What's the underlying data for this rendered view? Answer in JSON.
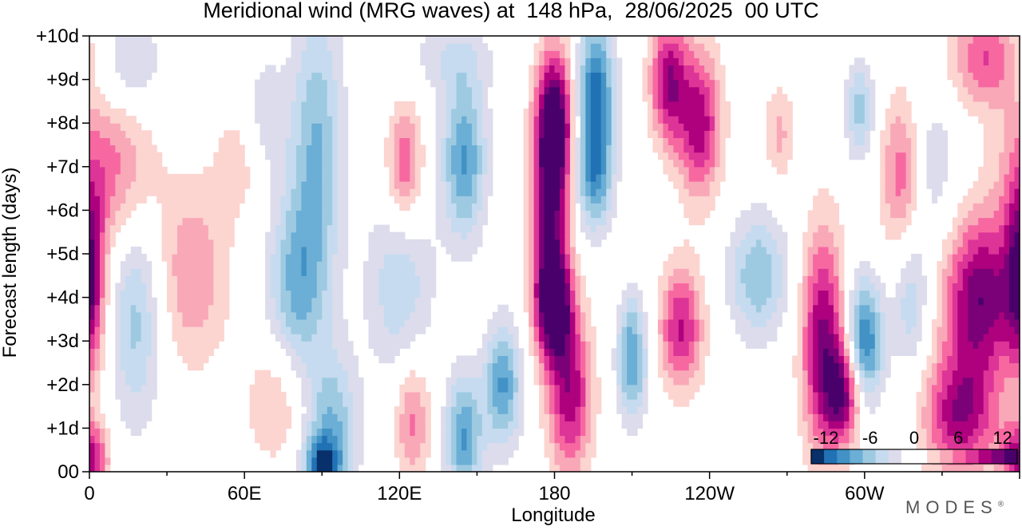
{
  "chart_data": {
    "type": "heatmap",
    "title": "Meridional wind (MRG waves) at  148 hPa,  28/06/2025  00 UTC",
    "xlabel": "Longitude",
    "ylabel": "Forecast length (days)",
    "x_ticks": [
      "0",
      "60E",
      "120E",
      "180",
      "120W",
      "60W"
    ],
    "y_ticks": [
      "00",
      "+1d",
      "+2d",
      "+3d",
      "+4d",
      "+5d",
      "+6d",
      "+7d",
      "+8d",
      "+9d",
      "+10d"
    ],
    "xlim": [
      0,
      360
    ],
    "ylim": [
      0,
      10
    ],
    "colorbar": {
      "labels": [
        "-12",
        "-6",
        "0",
        "6",
        "12"
      ],
      "range": [
        -14,
        14
      ],
      "placement": "bottom-right",
      "colors": [
        "#08306b",
        "#2171b5",
        "#4292c6",
        "#6baed6",
        "#9ecae1",
        "#c6dbef",
        "#dcdcec",
        "#ffffff",
        "#ffffff",
        "#fcd4d0",
        "#f9a8b8",
        "#f768a1",
        "#dd3497",
        "#ae017e",
        "#7a0177",
        "#49006a"
      ]
    },
    "grid": false,
    "features": [
      {
        "lon": 0,
        "day": 4.5,
        "amp": 10,
        "sx": 4,
        "sy": 1.5
      },
      {
        "lon": 0,
        "day": 0.3,
        "amp": 10,
        "sx": 5,
        "sy": 0.6
      },
      {
        "lon": 8,
        "day": 7.0,
        "amp": 6,
        "sx": 12,
        "sy": 1.3
      },
      {
        "lon": 18,
        "day": 3.5,
        "amp": -6,
        "sx": 7,
        "sy": 1.7
      },
      {
        "lon": 40,
        "day": 4.5,
        "amp": 5,
        "sx": 10,
        "sy": 1.5
      },
      {
        "lon": 60,
        "day": 7.2,
        "amp": 3,
        "sx": 8,
        "sy": 1.0
      },
      {
        "lon": 72,
        "day": 1.6,
        "amp": 4,
        "sx": 8,
        "sy": 1.0
      },
      {
        "lon": 68,
        "day": 8.0,
        "amp": -4,
        "sx": 6,
        "sy": 1.0
      },
      {
        "lon": 88,
        "day": 7.5,
        "amp": -7,
        "sx": 7,
        "sy": 2.3
      },
      {
        "lon": 80,
        "day": 4.3,
        "amp": -7,
        "sx": 8,
        "sy": 1.5
      },
      {
        "lon": 94,
        "day": 1.0,
        "amp": -7,
        "sx": 7,
        "sy": 1.2
      },
      {
        "lon": 90,
        "day": 0.1,
        "amp": -10,
        "sx": 5,
        "sy": 0.5
      },
      {
        "lon": 122,
        "day": 7.0,
        "amp": 7,
        "sx": 5,
        "sy": 1.0
      },
      {
        "lon": 125,
        "day": 1.2,
        "amp": 6,
        "sx": 5,
        "sy": 1.0
      },
      {
        "lon": 120,
        "day": 4.3,
        "amp": -5,
        "sx": 9,
        "sy": 1.5
      },
      {
        "lon": 145,
        "day": 7.2,
        "amp": -9,
        "sx": 6,
        "sy": 1.3
      },
      {
        "lon": 160,
        "day": 2.0,
        "amp": -9,
        "sx": 5,
        "sy": 1.0
      },
      {
        "lon": 145,
        "day": 0.8,
        "amp": -9,
        "sx": 5,
        "sy": 1.0
      },
      {
        "lon": 180,
        "day": 8.0,
        "amp": 14,
        "sx": 5,
        "sy": 1.2
      },
      {
        "lon": 178,
        "day": 5.5,
        "amp": 11,
        "sx": 5,
        "sy": 1.7
      },
      {
        "lon": 180,
        "day": 3.8,
        "amp": 11,
        "sx": 5,
        "sy": 0.8
      },
      {
        "lon": 186,
        "day": 1.8,
        "amp": 10,
        "sx": 6,
        "sy": 1.3
      },
      {
        "lon": 196,
        "day": 8.5,
        "amp": -12,
        "sx": 5,
        "sy": 1.3
      },
      {
        "lon": 195,
        "day": 6.6,
        "amp": -6,
        "sx": 5,
        "sy": 0.8
      },
      {
        "lon": 210,
        "day": 2.6,
        "amp": -9,
        "sx": 4,
        "sy": 1.0
      },
      {
        "lon": 224,
        "day": 9.0,
        "amp": 10,
        "sx": 5,
        "sy": 1.0
      },
      {
        "lon": 236,
        "day": 8.0,
        "amp": 10,
        "sx": 6,
        "sy": 1.2
      },
      {
        "lon": 229,
        "day": 3.3,
        "amp": 9,
        "sx": 6,
        "sy": 1.0
      },
      {
        "lon": 259,
        "day": 4.5,
        "amp": -7,
        "sx": 8,
        "sy": 1.0
      },
      {
        "lon": 267,
        "day": 7.8,
        "amp": 4,
        "sx": 4,
        "sy": 0.8
      },
      {
        "lon": 284,
        "day": 3.0,
        "amp": 11,
        "sx": 6,
        "sy": 1.8
      },
      {
        "lon": 292,
        "day": 1.8,
        "amp": 10,
        "sx": 5,
        "sy": 0.8
      },
      {
        "lon": 300,
        "day": 3.0,
        "amp": -11,
        "sx": 5,
        "sy": 1.0
      },
      {
        "lon": 298,
        "day": 8.3,
        "amp": -6,
        "sx": 4,
        "sy": 0.8
      },
      {
        "lon": 315,
        "day": 6.8,
        "amp": 8,
        "sx": 6,
        "sy": 1.3
      },
      {
        "lon": 318,
        "day": 4.0,
        "amp": -5,
        "sx": 5,
        "sy": 1.2
      },
      {
        "lon": 324,
        "day": 7.0,
        "amp": -4,
        "sx": 8,
        "sy": 1.3
      },
      {
        "lon": 345,
        "day": 4.0,
        "amp": 12,
        "sx": 10,
        "sy": 1.3
      },
      {
        "lon": 337,
        "day": 1.3,
        "amp": 10,
        "sx": 10,
        "sy": 1.0
      },
      {
        "lon": 347,
        "day": 9.5,
        "amp": 7,
        "sx": 10,
        "sy": 0.8
      },
      {
        "lon": 15,
        "day": 9.3,
        "amp": -4,
        "sx": 10,
        "sy": 0.8
      },
      {
        "lon": 140,
        "day": 9.5,
        "amp": -3,
        "sx": 12,
        "sy": 0.6
      }
    ]
  },
  "brand": "MODES",
  "brand_mark": "®"
}
